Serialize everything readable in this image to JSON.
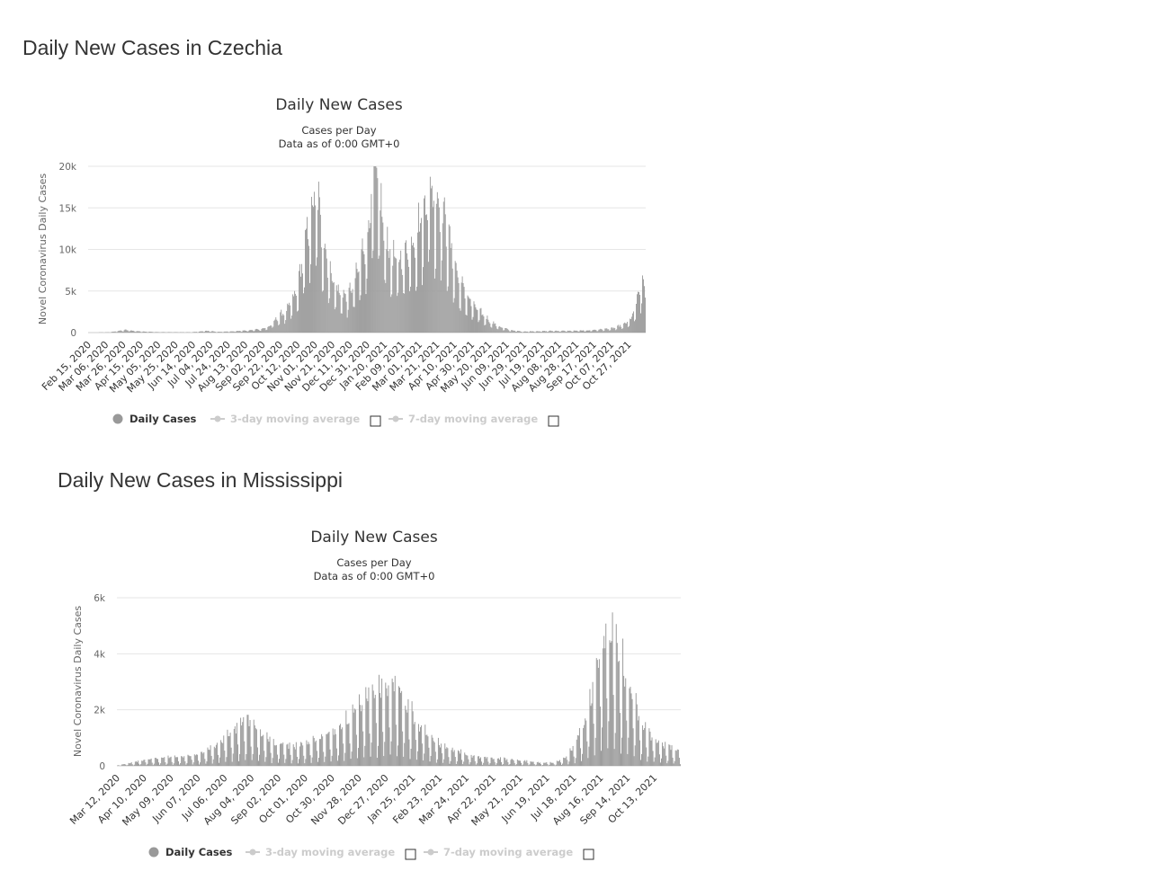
{
  "sections": [
    {
      "heading": "Daily New Cases in Czechia",
      "chart_title": "Daily New Cases",
      "subtitle_1": "Cases per Day",
      "subtitle_2": "Data as of 0:00 GMT+0",
      "ylabel": "Novel Coronavirus Daily Cases",
      "legend": {
        "daily_cases": "Daily Cases",
        "ma3": "3-day moving average",
        "ma7": "7-day moving average"
      }
    },
    {
      "heading": "Daily New Cases in Mississippi",
      "chart_title": "Daily New Cases",
      "subtitle_1": "Cases per Day",
      "subtitle_2": "Data as of 0:00 GMT+0",
      "ylabel": "Novel Coronavirus Daily Cases",
      "legend": {
        "daily_cases": "Daily Cases",
        "ma3": "3-day moving average",
        "ma7": "7-day moving average"
      }
    }
  ],
  "chart_data": [
    {
      "type": "bar",
      "title": "Daily New Cases",
      "subtitle": "Cases per Day / Data as of 0:00 GMT+0",
      "xlabel": "",
      "ylabel": "Novel Coronavirus Daily Cases",
      "ylim": [
        0,
        20000
      ],
      "yticks": [
        "0",
        "5k",
        "10k",
        "15k",
        "20k"
      ],
      "ytick_values": [
        0,
        5000,
        10000,
        15000,
        20000
      ],
      "grid": true,
      "legend_position": "bottom",
      "color": "#999999",
      "start_date": "2020-02-15",
      "end_date": "2021-10-31",
      "x_tick_labels": [
        "Feb 15, 2020",
        "Mar 06, 2020",
        "Mar 26, 2020",
        "Apr 15, 2020",
        "May 05, 2020",
        "May 25, 2020",
        "Jun 14, 2020",
        "Jul 04, 2020",
        "Jul 24, 2020",
        "Aug 13, 2020",
        "Sep 02, 2020",
        "Sep 22, 2020",
        "Oct 12, 2020",
        "Nov 01, 2020",
        "Nov 21, 2020",
        "Dec 11, 2020",
        "Dec 31, 2020",
        "Jan 20, 2021",
        "Feb 09, 2021",
        "Mar 01, 2021",
        "Mar 21, 2021",
        "Apr 10, 2021",
        "Apr 30, 2021",
        "May 20, 2021",
        "Jun 09, 2021",
        "Jun 29, 2021",
        "Jul 19, 2021",
        "Aug 08, 2021",
        "Aug 28, 2021",
        "Sep 17, 2021",
        "Oct 07, 2021",
        "Oct 27, 2021"
      ],
      "series": [
        {
          "name": "Daily Cases",
          "keypoints": [
            [
              "2020-02-15",
              0
            ],
            [
              "2020-03-10",
              40
            ],
            [
              "2020-03-20",
              200
            ],
            [
              "2020-03-28",
              300
            ],
            [
              "2020-04-10",
              150
            ],
            [
              "2020-05-01",
              60
            ],
            [
              "2020-06-10",
              40
            ],
            [
              "2020-06-28",
              200
            ],
            [
              "2020-07-10",
              80
            ],
            [
              "2020-07-25",
              150
            ],
            [
              "2020-08-13",
              250
            ],
            [
              "2020-08-28",
              450
            ],
            [
              "2020-09-05",
              700
            ],
            [
              "2020-09-15",
              1800
            ],
            [
              "2020-09-25",
              2600
            ],
            [
              "2020-10-05",
              4500
            ],
            [
              "2020-10-12",
              8000
            ],
            [
              "2020-10-20",
              13000
            ],
            [
              "2020-10-28",
              15500
            ],
            [
              "2020-11-03",
              11000
            ],
            [
              "2020-11-10",
              7500
            ],
            [
              "2020-11-20",
              4800
            ],
            [
              "2020-11-30",
              4000
            ],
            [
              "2020-12-06",
              5000
            ],
            [
              "2020-12-12",
              6500
            ],
            [
              "2020-12-18",
              9000
            ],
            [
              "2020-12-24",
              11000
            ],
            [
              "2020-12-30",
              17500
            ],
            [
              "2021-01-05",
              17000
            ],
            [
              "2021-01-10",
              12000
            ],
            [
              "2021-01-20",
              8500
            ],
            [
              "2021-01-28",
              8000
            ],
            [
              "2021-02-05",
              9000
            ],
            [
              "2021-02-14",
              10500
            ],
            [
              "2021-02-24",
              13500
            ],
            [
              "2021-03-03",
              16500
            ],
            [
              "2021-03-10",
              15000
            ],
            [
              "2021-03-16",
              14500
            ],
            [
              "2021-03-22",
              12000
            ],
            [
              "2021-03-28",
              9000
            ],
            [
              "2021-04-05",
              6000
            ],
            [
              "2021-04-12",
              4500
            ],
            [
              "2021-04-20",
              3200
            ],
            [
              "2021-04-30",
              2200
            ],
            [
              "2021-05-10",
              1300
            ],
            [
              "2021-05-20",
              700
            ],
            [
              "2021-06-01",
              300
            ],
            [
              "2021-06-15",
              120
            ],
            [
              "2021-07-01",
              150
            ],
            [
              "2021-07-20",
              200
            ],
            [
              "2021-08-10",
              200
            ],
            [
              "2021-08-28",
              250
            ],
            [
              "2021-09-10",
              350
            ],
            [
              "2021-09-25",
              500
            ],
            [
              "2021-10-07",
              900
            ],
            [
              "2021-10-15",
              1500
            ],
            [
              "2021-10-22",
              3500
            ],
            [
              "2021-10-28",
              6000
            ],
            [
              "2021-10-31",
              4500
            ]
          ]
        },
        {
          "name": "3-day moving average",
          "visible": false
        },
        {
          "name": "7-day moving average",
          "visible": false
        }
      ]
    },
    {
      "type": "bar",
      "title": "Daily New Cases",
      "subtitle": "Cases per Day / Data as of 0:00 GMT+0",
      "xlabel": "",
      "ylabel": "Novel Coronavirus Daily Cases",
      "ylim": [
        0,
        6000
      ],
      "yticks": [
        "0",
        "2k",
        "4k",
        "6k"
      ],
      "ytick_values": [
        0,
        2000,
        4000,
        6000
      ],
      "grid": true,
      "legend_position": "bottom",
      "color": "#999999",
      "start_date": "2020-03-12",
      "end_date": "2021-10-31",
      "x_tick_labels": [
        "Mar 12, 2020",
        "Apr 10, 2020",
        "May 09, 2020",
        "Jun 07, 2020",
        "Jul 06, 2020",
        "Aug 04, 2020",
        "Sep 02, 2020",
        "Oct 01, 2020",
        "Oct 30, 2020",
        "Nov 28, 2020",
        "Dec 27, 2020",
        "Jan 25, 2021",
        "Feb 23, 2021",
        "Mar 24, 2021",
        "Apr 22, 2021",
        "May 21, 2021",
        "Jun 19, 2021",
        "Jul 18, 2021",
        "Aug 16, 2021",
        "Sep 14, 2021",
        "Oct 13, 2021"
      ],
      "series": [
        {
          "name": "Daily Cases",
          "keypoints": [
            [
              "2020-03-12",
              10
            ],
            [
              "2020-03-25",
              90
            ],
            [
              "2020-04-10",
              180
            ],
            [
              "2020-04-25",
              230
            ],
            [
              "2020-05-10",
              270
            ],
            [
              "2020-05-25",
              300
            ],
            [
              "2020-06-07",
              350
            ],
            [
              "2020-06-20",
              550
            ],
            [
              "2020-07-05",
              900
            ],
            [
              "2020-07-18",
              1200
            ],
            [
              "2020-07-30",
              1400
            ],
            [
              "2020-08-08",
              1100
            ],
            [
              "2020-08-20",
              800
            ],
            [
              "2020-09-02",
              650
            ],
            [
              "2020-09-15",
              600
            ],
            [
              "2020-10-01",
              700
            ],
            [
              "2020-10-15",
              900
            ],
            [
              "2020-10-30",
              1100
            ],
            [
              "2020-11-15",
              1500
            ],
            [
              "2020-11-28",
              1900
            ],
            [
              "2020-12-10",
              2200
            ],
            [
              "2020-12-22",
              2400
            ],
            [
              "2021-01-02",
              2500
            ],
            [
              "2021-01-12",
              2000
            ],
            [
              "2021-01-25",
              1300
            ],
            [
              "2021-02-08",
              900
            ],
            [
              "2021-02-23",
              600
            ],
            [
              "2021-03-10",
              450
            ],
            [
              "2021-03-24",
              300
            ],
            [
              "2021-04-10",
              250
            ],
            [
              "2021-04-22",
              230
            ],
            [
              "2021-05-10",
              180
            ],
            [
              "2021-05-21",
              150
            ],
            [
              "2021-06-05",
              100
            ],
            [
              "2021-06-19",
              100
            ],
            [
              "2021-07-01",
              250
            ],
            [
              "2021-07-12",
              700
            ],
            [
              "2021-07-22",
              1400
            ],
            [
              "2021-08-01",
              2500
            ],
            [
              "2021-08-10",
              3600
            ],
            [
              "2021-08-18",
              4300
            ],
            [
              "2021-08-25",
              3800
            ],
            [
              "2021-09-02",
              3000
            ],
            [
              "2021-09-10",
              2200
            ],
            [
              "2021-09-20",
              1400
            ],
            [
              "2021-10-01",
              900
            ],
            [
              "2021-10-13",
              650
            ],
            [
              "2021-10-25",
              500
            ],
            [
              "2021-10-31",
              450
            ]
          ]
        },
        {
          "name": "3-day moving average",
          "visible": false
        },
        {
          "name": "7-day moving average",
          "visible": false
        }
      ]
    }
  ]
}
